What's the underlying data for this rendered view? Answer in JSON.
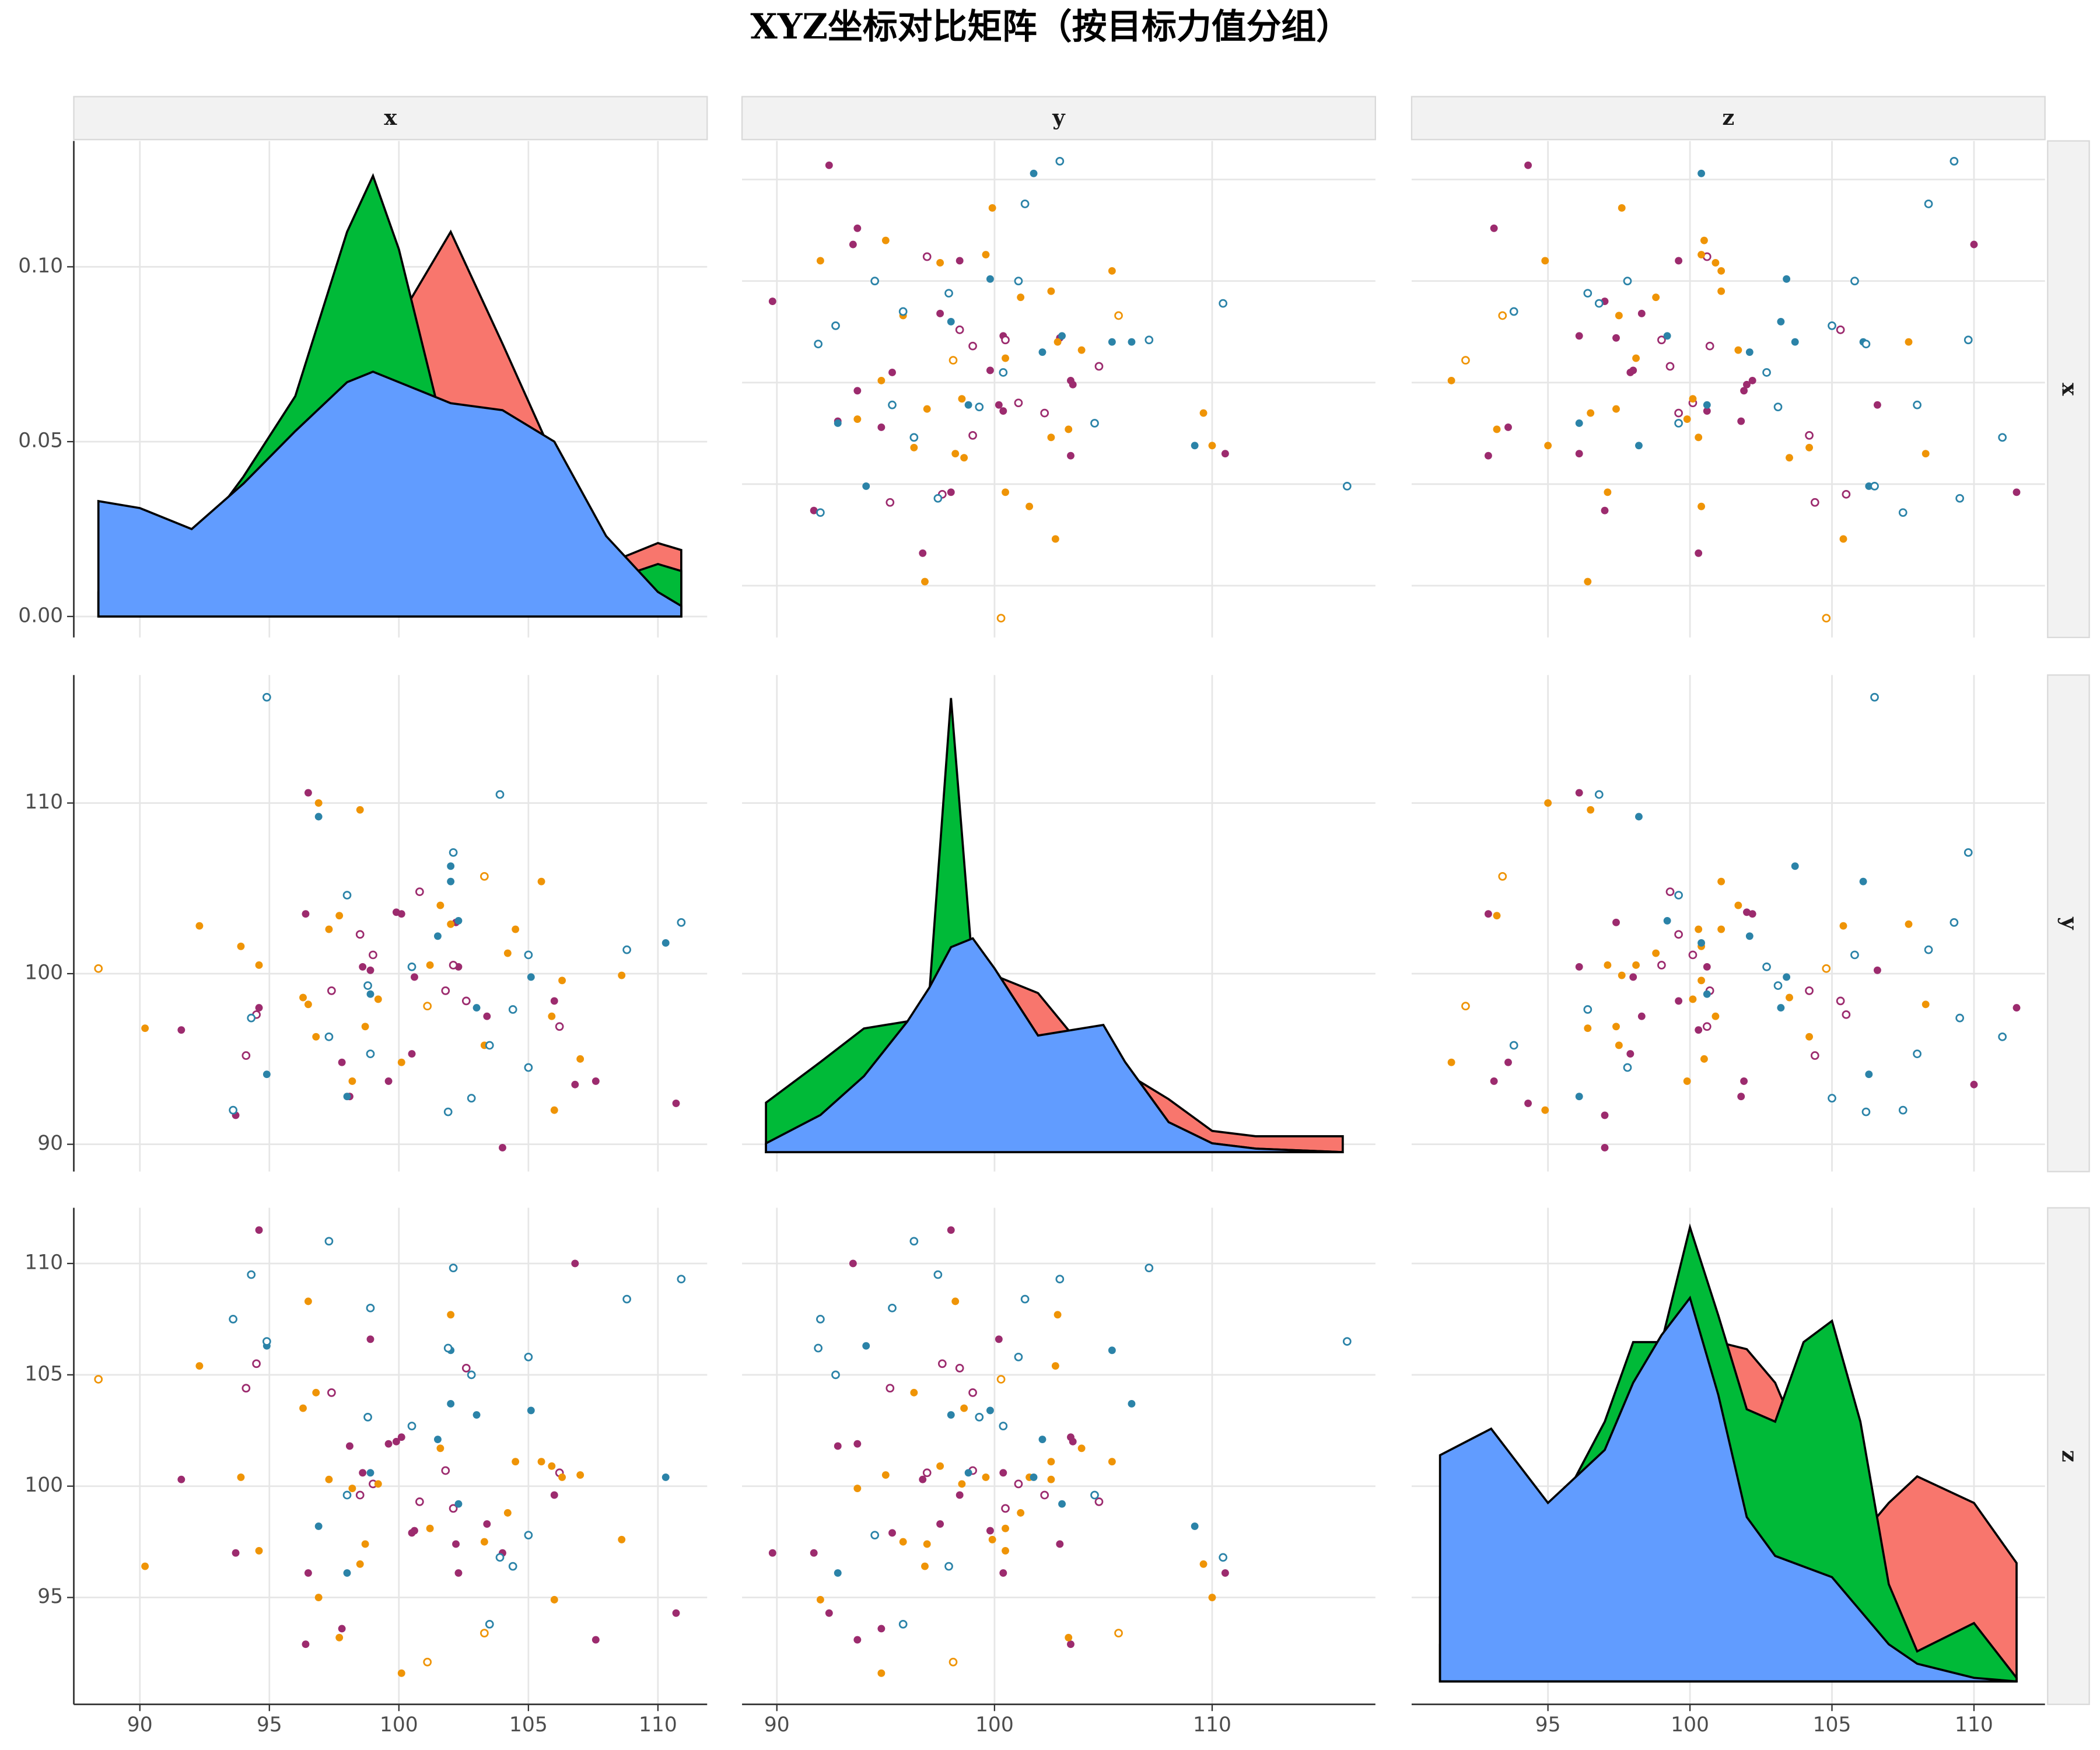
{
  "chart_data": {
    "type": "pairs",
    "title": "XYZ坐标对比矩阵（按目标力值分组）",
    "variables": [
      "x",
      "y",
      "z"
    ],
    "axes": {
      "x": {
        "lim": [
          87.45,
          111.9
        ],
        "ticks": [
          90,
          95,
          100,
          105,
          110
        ]
      },
      "y": {
        "lim": [
          88.4,
          117.5
        ],
        "ticks": [
          90,
          100,
          110
        ]
      },
      "z": {
        "lim": [
          90.2,
          112.5
        ],
        "ticks": [
          95,
          100,
          105,
          110
        ]
      }
    },
    "density": {
      "x": {
        "lim": [
          -0.006,
          0.136
        ],
        "ticks": [
          {
            "value": 0,
            "label": "0.00"
          },
          {
            "value": 0.05,
            "label": "0.05"
          },
          {
            "value": 0.1,
            "label": "0.10"
          }
        ],
        "at": [
          88.4,
          90,
          92,
          94,
          96,
          98,
          99,
          100,
          102,
          104,
          106,
          108,
          110,
          110.9
        ],
        "series": [
          {
            "color": "#f8766d",
            "values": [
              0,
              0.001,
              0.005,
              0.02,
              0.04,
              0.06,
              0.07,
              0.085,
              0.11,
              0.078,
              0.045,
              0.015,
              0.021,
              0.019
            ]
          },
          {
            "color": "#00ba38",
            "values": [
              0.007,
              0.012,
              0.02,
              0.04,
              0.063,
              0.11,
              0.126,
              0.105,
              0.045,
              0.035,
              0.03,
              0.01,
              0.015,
              0.013
            ]
          },
          {
            "color": "#619cff",
            "values": [
              0.033,
              0.031,
              0.025,
              0.038,
              0.053,
              0.067,
              0.07,
              0.067,
              0.061,
              0.059,
              0.05,
              0.023,
              0.007,
              0.003
            ]
          }
        ]
      },
      "y": {
        "lim": [
          -0.011,
          0.27
        ],
        "at": [
          89.5,
          92,
          94,
          96,
          97,
          98,
          99,
          100,
          102,
          104,
          105,
          106,
          108,
          110,
          112,
          116
        ],
        "series": [
          {
            "color": "#f8766d",
            "values": [
              0,
              0.01,
              0.03,
              0.055,
              0.07,
              0.085,
              0.095,
              0.1,
              0.09,
              0.06,
              0.05,
              0.045,
              0.03,
              0.012,
              0.009,
              0.009
            ]
          },
          {
            "color": "#00ba38",
            "values": [
              0.028,
              0.051,
              0.07,
              0.074,
              0.089,
              0.257,
              0.104,
              0.066,
              0.051,
              0.043,
              0.036,
              0.028,
              0.013,
              0.005,
              0.002,
              0
            ]
          },
          {
            "color": "#619cff",
            "values": [
              0.005,
              0.021,
              0.043,
              0.074,
              0.093,
              0.116,
              0.121,
              0.104,
              0.066,
              0.07,
              0.072,
              0.051,
              0.017,
              0.005,
              0.002,
              0
            ]
          }
        ]
      },
      "z": {
        "lim": [
          -0.013,
          0.268
        ],
        "at": [
          91.2,
          93,
          95,
          97,
          98,
          99,
          100,
          101,
          102,
          103,
          104,
          105,
          106,
          107,
          108,
          110,
          111.5
        ],
        "series": [
          {
            "color": "#f8766d",
            "values": [
              0.021,
              0.048,
              0.078,
              0.139,
              0.177,
              0.192,
              0.2,
              0.192,
              0.188,
              0.169,
              0.131,
              0.093,
              0.082,
              0.101,
              0.116,
              0.101,
              0.067
            ]
          },
          {
            "color": "#00ba38",
            "values": [
              0.048,
              0.078,
              0.086,
              0.147,
              0.192,
              0.192,
              0.257,
              0.207,
              0.154,
              0.147,
              0.192,
              0.204,
              0.147,
              0.055,
              0.017,
              0.033,
              0.002
            ]
          },
          {
            "color": "#619cff",
            "values": [
              0.128,
              0.143,
              0.101,
              0.131,
              0.169,
              0.196,
              0.217,
              0.162,
              0.093,
              0.071,
              0.065,
              0.059,
              0.04,
              0.021,
              0.01,
              0.002,
              0
            ]
          }
        ]
      }
    },
    "groups": [
      {
        "color": "#9c2b6e",
        "filled": true,
        "x": [
          96.5,
          91.6,
          93.7,
          94.6,
          96.4,
          98.6,
          99.6,
          100.5,
          98.1,
          100.1,
          104.0,
          106.0,
          106.8,
          107.6,
          110.7,
          100.6,
          97.8,
          102.3,
          103.4,
          98.9,
          99.9,
          102.2
        ],
        "y": [
          110.6,
          96.7,
          91.7,
          98.0,
          103.5,
          100.4,
          93.7,
          95.3,
          92.8,
          103.5,
          89.8,
          98.4,
          93.5,
          93.7,
          92.4,
          99.8,
          94.8,
          100.4,
          97.5,
          100.2,
          103.6,
          103.0
        ],
        "z": [
          96.1,
          100.3,
          97.0,
          111.5,
          92.9,
          100.6,
          101.9,
          97.9,
          101.8,
          102.2,
          97.0,
          99.6,
          110.0,
          93.1,
          94.3,
          98.0,
          93.6,
          96.1,
          98.3,
          106.6,
          102.0,
          97.4
        ]
      },
      {
        "color": "#9c2b6e",
        "filled": false,
        "x": [
          98.5,
          100.8,
          102.6,
          94.5,
          97.4,
          99.0,
          101.8,
          106.2,
          94.1,
          102.1
        ],
        "y": [
          102.3,
          104.8,
          98.4,
          97.6,
          99.0,
          101.1,
          99.0,
          96.9,
          95.2,
          100.5
        ],
        "z": [
          99.6,
          99.3,
          105.3,
          105.5,
          104.2,
          100.1,
          100.7,
          100.6,
          104.4,
          99.0
        ]
      },
      {
        "color": "#ef9406",
        "filled": true,
        "x": [
          98.5,
          96.9,
          92.3,
          90.2,
          93.9,
          94.6,
          96.5,
          96.8,
          97.3,
          97.7,
          98.2,
          98.7,
          100.1,
          101.6,
          102.0,
          101.2,
          103.3,
          104.2,
          104.5,
          105.5,
          105.9,
          106.3,
          107.0,
          108.6,
          106.0,
          96.3,
          99.2
        ],
        "y": [
          109.6,
          110.0,
          102.8,
          96.8,
          101.6,
          100.5,
          98.2,
          96.3,
          102.6,
          103.4,
          93.7,
          96.9,
          94.8,
          104.0,
          102.9,
          100.5,
          95.8,
          101.2,
          102.6,
          105.4,
          97.5,
          99.6,
          95.0,
          99.9,
          92.0,
          98.6,
          98.5
        ],
        "z": [
          96.5,
          95.0,
          105.4,
          96.4,
          100.4,
          97.1,
          108.3,
          104.2,
          100.3,
          93.2,
          99.9,
          97.4,
          91.6,
          101.7,
          107.7,
          98.1,
          97.5,
          98.8,
          101.1,
          101.1,
          100.9,
          100.4,
          100.5,
          97.6,
          94.9,
          103.5,
          100.1
        ]
      },
      {
        "color": "#ef9406",
        "filled": false,
        "x": [
          88.4,
          101.1,
          103.3
        ],
        "y": [
          100.3,
          98.1,
          105.7
        ],
        "z": [
          104.8,
          92.1,
          93.4
        ]
      },
      {
        "color": "#2b83a8",
        "filled": true,
        "x": [
          96.9,
          102.0,
          102.0,
          102.3,
          98.9,
          101.5,
          103.0,
          105.1,
          110.3,
          94.9,
          98.0
        ],
        "y": [
          109.2,
          106.3,
          105.4,
          103.1,
          98.8,
          102.2,
          98.0,
          99.8,
          101.8,
          94.1,
          92.8
        ],
        "z": [
          98.2,
          103.7,
          106.1,
          99.2,
          100.6,
          102.1,
          103.2,
          103.4,
          100.4,
          106.3,
          96.1
        ]
      },
      {
        "color": "#2b83a8",
        "filled": false,
        "x": [
          94.9,
          103.9,
          102.1,
          98.0,
          98.9,
          98.8,
          100.5,
          101.9,
          102.8,
          103.5,
          104.4,
          105.0,
          105.0,
          108.8,
          110.9,
          93.6,
          94.3,
          97.3
        ],
        "y": [
          116.2,
          110.5,
          107.1,
          104.6,
          95.3,
          99.3,
          100.4,
          91.9,
          92.7,
          95.8,
          97.9,
          101.1,
          94.5,
          101.4,
          103.0,
          92.0,
          97.4,
          96.3
        ],
        "z": [
          106.5,
          96.8,
          109.8,
          99.6,
          108.0,
          103.1,
          102.7,
          106.2,
          105.0,
          93.8,
          96.4,
          105.8,
          97.8,
          108.4,
          109.3,
          107.5,
          109.5,
          111.0
        ]
      }
    ]
  }
}
